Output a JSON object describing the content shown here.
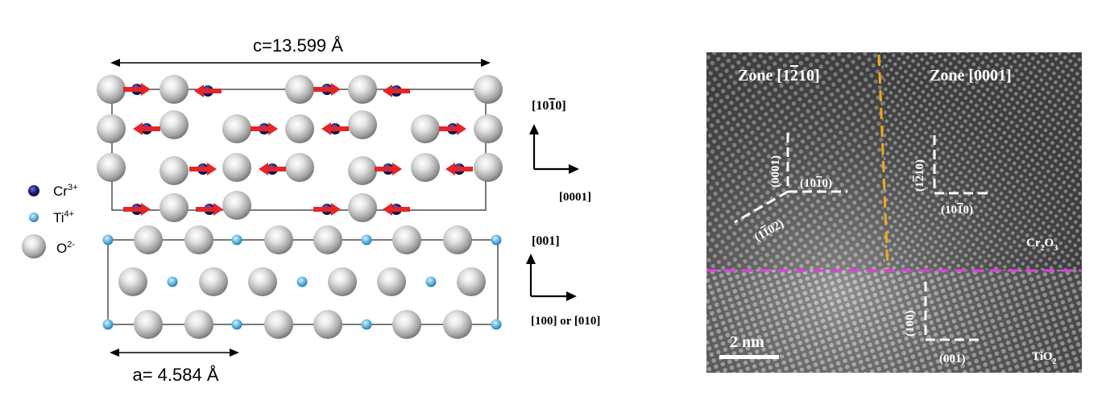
{
  "colors": {
    "cr_ion": "#1a1a6e",
    "ti_ion": "#5ab4e0",
    "o_ion": "#b4b4b4",
    "spin_arrow": "#e3262a",
    "zone_boundary_line": "#f0a81e",
    "interface_line": "#e040e0",
    "annotation": "#ffffff",
    "tem_background": "#555555"
  },
  "icons": {
    "o_atom": "gray-sphere",
    "cr_atom": "dark-blue-sphere",
    "ti_atom": "light-blue-sphere",
    "spin_arrow": "red-double-arrow"
  },
  "left_panel": {
    "c_dimension": "c=13.599 Å",
    "a_dimension": "a= 4.584 Å",
    "legend": {
      "cr_label": "Cr",
      "cr_charge": "3+",
      "ti_label": "Ti",
      "ti_charge": "4+",
      "o_label": "O",
      "o_charge": "2-"
    },
    "cr2o3_axes": {
      "vertical": "[10",
      "vertical_bar_digit": "1",
      "vertical_tail": "0]",
      "horizontal": "[0001]"
    },
    "tio2_axes": {
      "vertical": "[001]",
      "horizontal": "[100] or [010]"
    }
  },
  "right_panel": {
    "zone_left": {
      "prefix": "Zone [1",
      "bar_digit": "2",
      "suffix": "10]"
    },
    "zone_right": "Zone [0001]",
    "cr2o3_label": {
      "base": "Cr",
      "sub1": "2",
      "mid": "O",
      "sub2": "3"
    },
    "tio2_label": {
      "base": "TiO",
      "sub": "2"
    },
    "scale_bar": "2 nm",
    "planes": {
      "p0001": "(0001)",
      "p10m10_left": {
        "pre": "(10",
        "bar": "1",
        "post": "0)"
      },
      "p1m102": {
        "pre": "(1",
        "bar": "1",
        "post": "02)"
      },
      "p1m210": {
        "pre": "(1",
        "bar": "2",
        "post": "10)"
      },
      "p10m10_right": {
        "pre": "(10",
        "bar": "1",
        "post": "0)"
      },
      "p100": "(100)",
      "p001": "(001)"
    }
  }
}
